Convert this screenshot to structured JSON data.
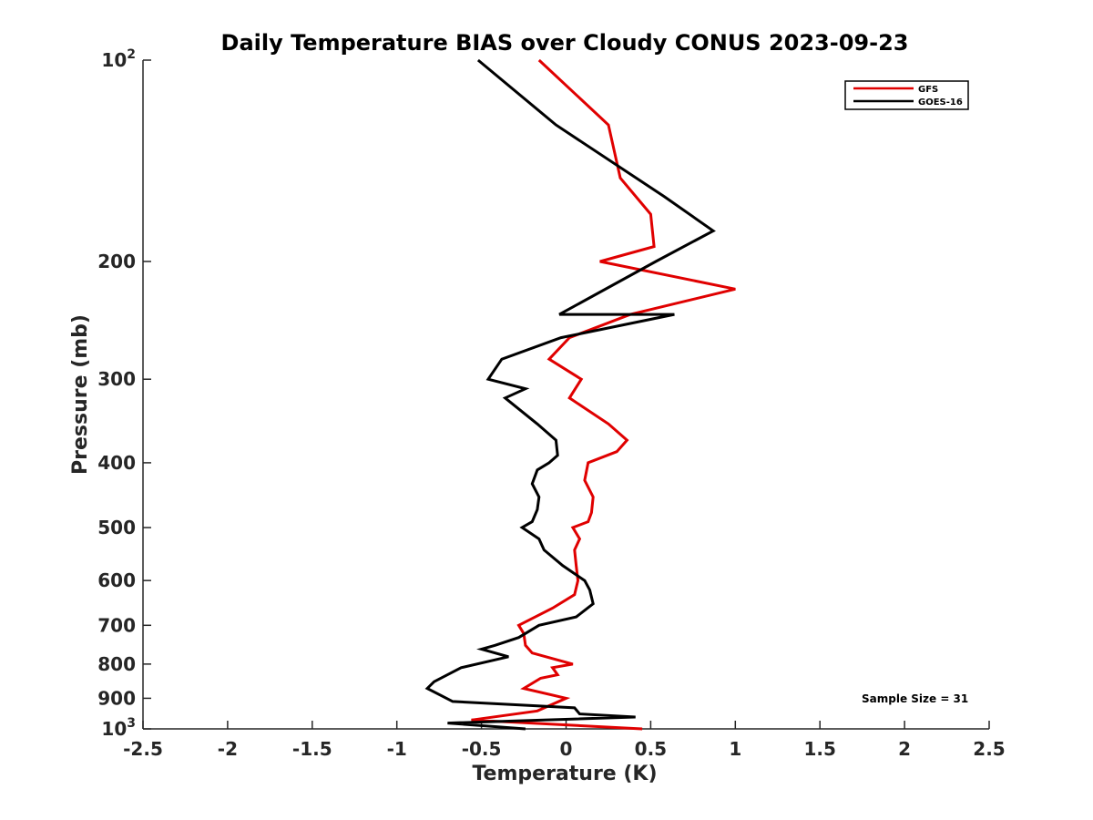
{
  "chart_data": {
    "type": "line",
    "title": "Daily Temperature BIAS over Cloudy CONUS 2023-09-23",
    "xlabel": "Temperature (K)",
    "ylabel": "Pressure (mb)",
    "xlim": [
      -2.5,
      2.5
    ],
    "ylim": [
      100,
      1000
    ],
    "y_scale": "log",
    "y_reversed": true,
    "x_ticks": [
      "-2.5",
      "-2",
      "-1.5",
      "-1",
      "-0.5",
      "0",
      "0.5",
      "1",
      "1.5",
      "2",
      "2.5"
    ],
    "y_ticks": [
      {
        "value": 100,
        "base": "10",
        "exp": "2"
      },
      {
        "value": 200,
        "label": "200"
      },
      {
        "value": 300,
        "label": "300"
      },
      {
        "value": 400,
        "label": "400"
      },
      {
        "value": 500,
        "label": "500"
      },
      {
        "value": 600,
        "label": "600"
      },
      {
        "value": 700,
        "label": "700"
      },
      {
        "value": 800,
        "label": "800"
      },
      {
        "value": 900,
        "label": "900"
      },
      {
        "value": 1000,
        "base": "10",
        "exp": "3"
      }
    ],
    "grid": false,
    "legend": {
      "placement": "top-right"
    },
    "annotation": "Sample Size = 31",
    "series": [
      {
        "name": "GFS",
        "color": "#e00000",
        "points": [
          [
            -0.16,
            100
          ],
          [
            0.25,
            125
          ],
          [
            0.32,
            150
          ],
          [
            0.5,
            170
          ],
          [
            0.52,
            190
          ],
          [
            0.2,
            200
          ],
          [
            1.0,
            220
          ],
          [
            0.38,
            240
          ],
          [
            0.02,
            260
          ],
          [
            -0.1,
            280
          ],
          [
            0.09,
            300
          ],
          [
            0.02,
            320
          ],
          [
            0.25,
            350
          ],
          [
            0.36,
            370
          ],
          [
            0.3,
            385
          ],
          [
            0.13,
            400
          ],
          [
            0.11,
            425
          ],
          [
            0.16,
            450
          ],
          [
            0.15,
            475
          ],
          [
            0.13,
            490
          ],
          [
            0.04,
            500
          ],
          [
            0.08,
            520
          ],
          [
            0.05,
            540
          ],
          [
            0.06,
            570
          ],
          [
            0.07,
            600
          ],
          [
            0.05,
            630
          ],
          [
            -0.08,
            660
          ],
          [
            -0.28,
            700
          ],
          [
            -0.25,
            720
          ],
          [
            -0.24,
            750
          ],
          [
            -0.2,
            770
          ],
          [
            0.04,
            800
          ],
          [
            -0.08,
            810
          ],
          [
            -0.05,
            830
          ],
          [
            -0.15,
            840
          ],
          [
            -0.25,
            870
          ],
          [
            0.0,
            900
          ],
          [
            -0.17,
            940
          ],
          [
            -0.56,
            970
          ],
          [
            0.45,
            1000
          ]
        ]
      },
      {
        "name": "GOES-16",
        "color": "#000000",
        "points": [
          [
            -0.52,
            100
          ],
          [
            -0.06,
            125
          ],
          [
            0.58,
            160
          ],
          [
            0.87,
            180
          ],
          [
            0.53,
            200
          ],
          [
            -0.04,
            240
          ],
          [
            0.64,
            240
          ],
          [
            -0.03,
            260
          ],
          [
            -0.38,
            280
          ],
          [
            -0.46,
            300
          ],
          [
            -0.24,
            310
          ],
          [
            -0.36,
            320
          ],
          [
            -0.17,
            350
          ],
          [
            -0.06,
            370
          ],
          [
            -0.05,
            390
          ],
          [
            -0.1,
            400
          ],
          [
            -0.17,
            410
          ],
          [
            -0.2,
            430
          ],
          [
            -0.16,
            450
          ],
          [
            -0.17,
            470
          ],
          [
            -0.2,
            490
          ],
          [
            -0.26,
            500
          ],
          [
            -0.16,
            520
          ],
          [
            -0.13,
            540
          ],
          [
            -0.02,
            570
          ],
          [
            0.11,
            600
          ],
          [
            0.14,
            620
          ],
          [
            0.16,
            650
          ],
          [
            0.06,
            680
          ],
          [
            -0.16,
            700
          ],
          [
            -0.28,
            730
          ],
          [
            -0.42,
            750
          ],
          [
            -0.5,
            760
          ],
          [
            -0.34,
            780
          ],
          [
            -0.62,
            810
          ],
          [
            -0.78,
            850
          ],
          [
            -0.82,
            870
          ],
          [
            -0.67,
            910
          ],
          [
            0.05,
            930
          ],
          [
            0.08,
            950
          ],
          [
            0.41,
            960
          ],
          [
            -0.7,
            980
          ],
          [
            -0.24,
            1000
          ]
        ]
      }
    ]
  }
}
